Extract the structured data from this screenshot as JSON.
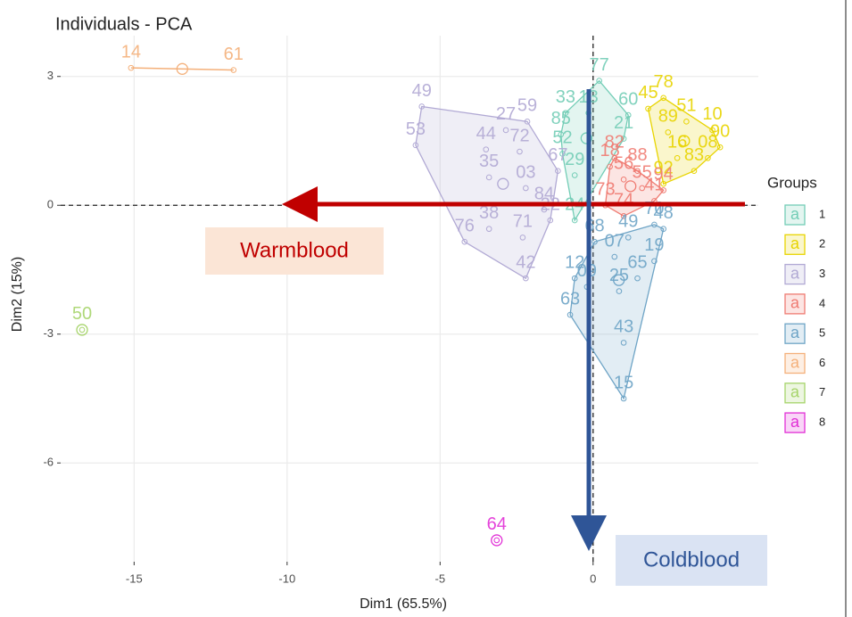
{
  "chart_data": {
    "type": "scatter",
    "title": "Individuals - PCA",
    "x_label": "Dim1 (65.5%)",
    "y_label": "Dim2 (15%)",
    "xlim": [
      -17.4,
      5.4
    ],
    "ylim": [
      -8.3,
      3.95
    ],
    "xticks": [
      -15,
      -10,
      -5,
      0
    ],
    "yticks": [
      3,
      0,
      -3,
      -6
    ],
    "grid": true,
    "reference_lines": {
      "x": 0,
      "y": 0
    },
    "legend_title": "Groups",
    "legend_key_text": "a",
    "legend_position": "right",
    "annotations": [
      "Warmblood",
      "Coldblood"
    ],
    "series": [
      {
        "name": "1",
        "color": "#73cdb6",
        "labels": [
          "77",
          "33",
          "13",
          "60",
          "85",
          "52",
          "29",
          "24",
          "21"
        ],
        "x": [
          0.2,
          -0.9,
          -0.15,
          1.15,
          -1.05,
          -1.0,
          -0.6,
          -0.6,
          1.0
        ],
        "y": [
          2.9,
          2.15,
          2.15,
          2.1,
          1.65,
          1.2,
          0.7,
          -0.35,
          1.55
        ]
      },
      {
        "name": "2",
        "color": "#e8d400",
        "labels": [
          "78",
          "45",
          "89",
          "10",
          "90",
          "51",
          "08",
          "83",
          "16",
          "92"
        ],
        "x": [
          2.3,
          1.8,
          2.45,
          3.9,
          4.15,
          3.05,
          3.75,
          3.3,
          2.75,
          2.3
        ],
        "y": [
          2.5,
          2.25,
          1.7,
          1.75,
          1.35,
          1.95,
          1.1,
          0.8,
          1.1,
          0.5
        ]
      },
      {
        "name": "3",
        "color": "#b1a9d4",
        "labels": [
          "49",
          "53",
          "76",
          "42",
          "44",
          "72",
          "27",
          "59",
          "35",
          "03",
          "38",
          "71",
          "22",
          "67",
          "84"
        ],
        "x": [
          -5.6,
          -5.8,
          -4.2,
          -2.2,
          -3.5,
          -2.4,
          -2.85,
          -2.15,
          -3.4,
          -2.2,
          -3.4,
          -2.3,
          -1.4,
          -1.15,
          -1.6
        ],
        "y": [
          2.3,
          1.4,
          -0.85,
          -1.7,
          1.3,
          1.25,
          1.75,
          1.95,
          0.65,
          0.4,
          -0.55,
          -0.75,
          -0.35,
          0.8,
          -0.1
        ]
      },
      {
        "name": "4",
        "color": "#ef7b72",
        "labels": [
          "82",
          "18",
          "56",
          "55",
          "94",
          "74",
          "41",
          "73",
          "88"
        ],
        "x": [
          0.7,
          0.55,
          1.0,
          1.6,
          2.3,
          1.0,
          2.0,
          0.4,
          1.45
        ],
        "y": [
          1.1,
          0.9,
          0.6,
          0.4,
          0.35,
          -0.25,
          0.1,
          0.0,
          0.8
        ]
      },
      {
        "name": "5",
        "color": "#6ea4c6",
        "labels": [
          "48",
          "49",
          "68",
          "07",
          "19",
          "65",
          "25",
          "12",
          "09",
          "63",
          "43",
          "15",
          "70"
        ],
        "x": [
          2.3,
          1.15,
          0.05,
          0.7,
          2.0,
          1.45,
          0.85,
          -0.6,
          -0.2,
          -0.75,
          1.0,
          1.0,
          2.0
        ],
        "y": [
          -0.55,
          -0.75,
          -0.85,
          -1.2,
          -1.3,
          -1.7,
          -2.0,
          -1.7,
          -1.9,
          -2.55,
          -3.2,
          -4.5,
          -0.45
        ]
      },
      {
        "name": "6",
        "color": "#f4b07a",
        "labels": [
          "14",
          "61"
        ],
        "x": [
          -15.1,
          -11.75
        ],
        "y": [
          3.2,
          3.15
        ]
      },
      {
        "name": "7",
        "color": "#a6d46a",
        "labels": [
          "50"
        ],
        "x": [
          -16.7
        ],
        "y": [
          -2.9
        ]
      },
      {
        "name": "8",
        "color": "#e12fd6",
        "labels": [
          "64"
        ],
        "x": [
          -3.15
        ],
        "y": [
          -7.8
        ]
      }
    ]
  }
}
